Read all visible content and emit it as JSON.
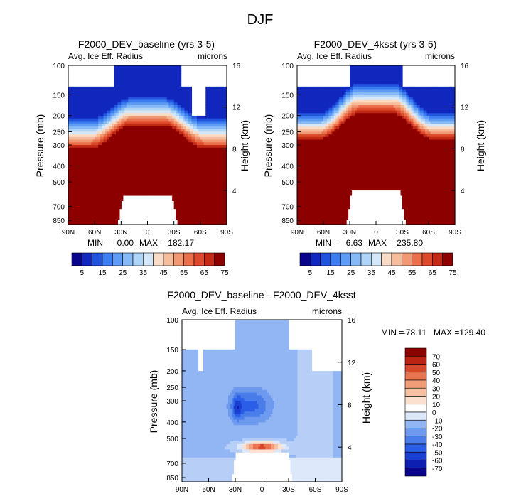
{
  "figure_title": "DJF",
  "colors": {
    "seq": [
      "#08048c",
      "#1127bd",
      "#2154de",
      "#3c7ef0",
      "#5f9df4",
      "#86baf6",
      "#aed4f8",
      "#d5e8fa",
      "#f9dcc8",
      "#f6bd9c",
      "#f29873",
      "#ea704c",
      "#dc4a2b",
      "#c32a16",
      "#8c0000"
    ],
    "div": [
      "#08048c",
      "#0c1fb0",
      "#1a3fd2",
      "#2b5ee6",
      "#4a7de9",
      "#6d99ee",
      "#92b5f3",
      "#b7cff7",
      "#dde9fa",
      "#ffffff",
      "#fce0cf",
      "#f7c0a1",
      "#f09d78",
      "#e6744f",
      "#d6472c",
      "#bb2313",
      "#8c0000"
    ]
  },
  "chart_data": [
    {
      "type": "heatmap",
      "id": "baseline",
      "title": "F2000_DEV_baseline (yrs 3-5)",
      "left_label": "Avg. Ice Eff. Radius",
      "right_label": "microns",
      "ylabel": "Pressure (mb)",
      "ylabel2": "Height (km)",
      "xlabel": "",
      "x_ticks": [
        "90N",
        "60N",
        "30N",
        "0",
        "30S",
        "60S",
        "90S"
      ],
      "x_values": [
        90,
        60,
        30,
        0,
        -30,
        -60,
        -90
      ],
      "y_ticks": [
        100,
        150,
        200,
        250,
        300,
        400,
        500,
        700,
        850
      ],
      "y2_ticks": [
        16,
        12,
        8,
        4
      ],
      "ylim": [
        100,
        900
      ],
      "levels": [
        5,
        10,
        15,
        20,
        25,
        30,
        35,
        40,
        45,
        50,
        55,
        60,
        65,
        70,
        75
      ],
      "colorbar_labels": [
        "5",
        "15",
        "25",
        "35",
        "45",
        "55",
        "65",
        "75"
      ],
      "stats": {
        "min_label": "MIN =",
        "min": "0.00",
        "max_label": "MAX =",
        "max": "182.17"
      },
      "profile": {
        "p75_center": 240,
        "p75_edge": 330,
        "p10_center": 155,
        "p10_edge": 205,
        "top_center": 100,
        "top_edge": 132,
        "tropic_top_half_width": 37,
        "lower_hole_half_width": 35,
        "lower_hole_top": 600,
        "cloud_gaps": [
          [
            -66,
            -60
          ],
          [
            -60,
            -50
          ]
        ]
      }
    },
    {
      "type": "heatmap",
      "id": "4ksst",
      "title": "F2000_DEV_4ksst (yrs 3-5)",
      "left_label": "Avg. Ice Eff. Radius",
      "right_label": "microns",
      "ylabel": "Pressure (mb)",
      "ylabel2": "Height (km)",
      "xlabel": "",
      "x_ticks": [
        "90N",
        "60N",
        "30N",
        "0",
        "30S",
        "60S",
        "90S"
      ],
      "x_values": [
        90,
        60,
        30,
        0,
        -30,
        -60,
        -90
      ],
      "y_ticks": [
        100,
        150,
        200,
        250,
        300,
        400,
        500,
        700,
        850
      ],
      "y2_ticks": [
        16,
        12,
        8,
        4
      ],
      "ylim": [
        100,
        900
      ],
      "levels": [
        5,
        10,
        15,
        20,
        25,
        30,
        35,
        40,
        45,
        50,
        55,
        60,
        65,
        70,
        75
      ],
      "colorbar_labels": [
        "5",
        "15",
        "25",
        "35",
        "45",
        "55",
        "65",
        "75"
      ],
      "stats": {
        "min_label": "MIN =",
        "min": "6.63",
        "max_label": "MAX =",
        "max": "235.80"
      },
      "profile": {
        "p75_center": 205,
        "p75_edge": 290,
        "p10_center": 125,
        "p10_edge": 190,
        "top_center": 100,
        "top_edge": 132,
        "tropic_top_half_width": 30,
        "lower_hole_half_width": 35,
        "lower_hole_top": 560,
        "cloud_gaps": []
      }
    },
    {
      "type": "heatmap",
      "id": "difference",
      "title": "F2000_DEV_baseline - F2000_DEV_4ksst",
      "left_label": "Avg. Ice Eff. Radius",
      "right_label": "microns",
      "ylabel": "Pressure (mb)",
      "ylabel2": "Height (km)",
      "xlabel": "",
      "x_ticks": [
        "90N",
        "60N",
        "30N",
        "0",
        "30S",
        "60S",
        "90S"
      ],
      "x_values": [
        90,
        60,
        30,
        0,
        -30,
        -60,
        -90
      ],
      "y_ticks": [
        100,
        150,
        200,
        250,
        300,
        400,
        500,
        700,
        850
      ],
      "y2_ticks": [
        16,
        12,
        8,
        4
      ],
      "ylim": [
        100,
        900
      ],
      "levels": [
        -70,
        -60,
        -50,
        -40,
        -30,
        -20,
        -10,
        0,
        10,
        20,
        30,
        40,
        50,
        60,
        70
      ],
      "colorbar_labels": [
        "70",
        "60",
        "50",
        "40",
        "30",
        "20",
        "10",
        "0",
        "-10",
        "-20",
        "-30",
        "-40",
        "-50",
        "-60",
        "-70"
      ],
      "stats": {
        "min_label": "MIN =",
        "min": "-78.11",
        "max_label": "MAX =",
        "max": "129.40"
      }
    }
  ]
}
